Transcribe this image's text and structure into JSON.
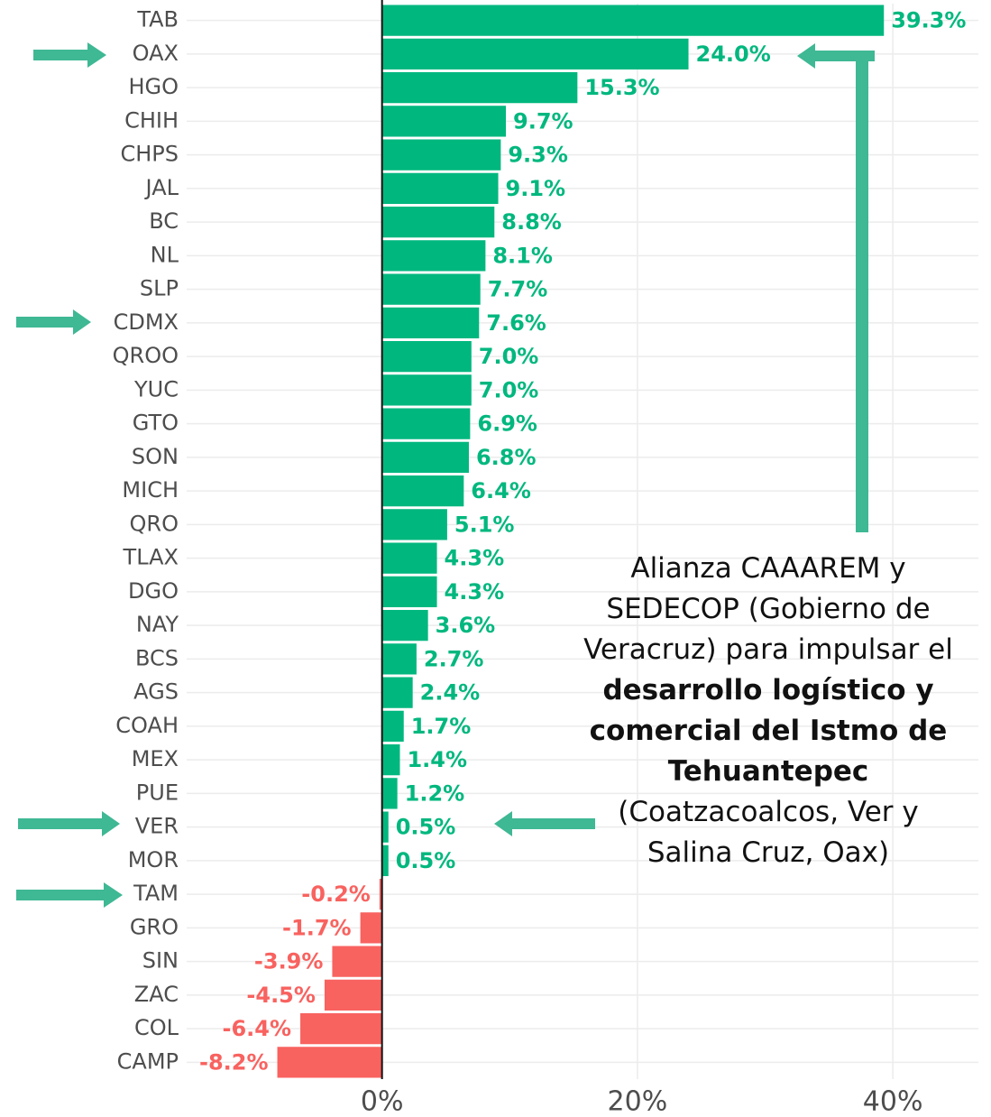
{
  "chart_data": {
    "type": "barh",
    "categories": [
      "TAB",
      "OAX",
      "HGO",
      "CHIH",
      "CHPS",
      "JAL",
      "BC",
      "NL",
      "SLP",
      "CDMX",
      "QROO",
      "YUC",
      "GTO",
      "SON",
      "MICH",
      "QRO",
      "TLAX",
      "DGO",
      "NAY",
      "BCS",
      "AGS",
      "COAH",
      "MEX",
      "PUE",
      "VER",
      "MOR",
      "TAM",
      "GRO",
      "SIN",
      "ZAC",
      "COL",
      "CAMP"
    ],
    "values": [
      39.3,
      24.0,
      15.3,
      9.7,
      9.3,
      9.1,
      8.8,
      8.1,
      7.7,
      7.6,
      7.0,
      7.0,
      6.9,
      6.8,
      6.4,
      5.1,
      4.3,
      4.3,
      3.6,
      2.7,
      2.4,
      1.7,
      1.4,
      1.2,
      0.5,
      0.5,
      -0.2,
      -1.7,
      -3.9,
      -4.5,
      -6.4,
      -8.2
    ],
    "value_labels": [
      "39.3%",
      "24.0%",
      "15.3%",
      "9.7%",
      "9.3%",
      "9.1%",
      "8.8%",
      "8.1%",
      "7.7%",
      "7.6%",
      "7.0%",
      "7.0%",
      "6.9%",
      "6.8%",
      "6.4%",
      "5.1%",
      "4.3%",
      "4.3%",
      "3.6%",
      "2.7%",
      "2.4%",
      "1.7%",
      "1.4%",
      "1.2%",
      "0.5%",
      "0.5%",
      "-0.2%",
      "-1.7%",
      "-3.9%",
      "-4.5%",
      "-6.4%",
      "-8.2%"
    ],
    "positive_color": "#00b77e",
    "negative_color": "#f8625f",
    "xlim": [
      -15.3,
      46.7
    ],
    "xticks": [
      {
        "value": 0,
        "label": "0%"
      },
      {
        "value": 20,
        "label": "20%"
      },
      {
        "value": 40,
        "label": "40%"
      }
    ],
    "grid": true,
    "annotation": [
      "Alianza CAAAREM y SEDECOP (Gobierno de Veracruz) para impulsar el ",
      "desarrollo logístico y comercial del Istmo de Tehuantepec",
      " (Coatzacoalcos, Ver y Salina Cruz, Oax)"
    ]
  }
}
